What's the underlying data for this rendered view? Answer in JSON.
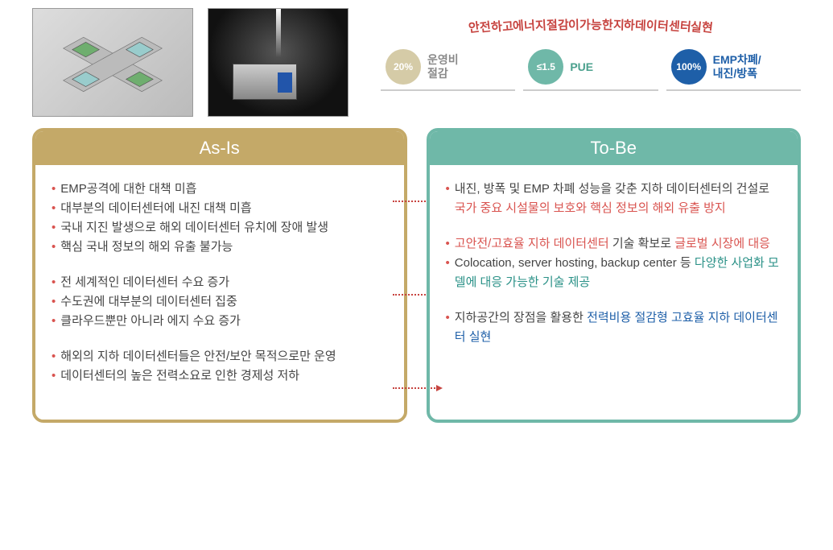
{
  "kpi": {
    "arc_text": "안전하고 에너지 절감이 가능한 지하 데이터센터 실현",
    "arc_color": "#c74440",
    "items": [
      {
        "circle_text": "20%",
        "circle_bg": "#d5cba7",
        "label": "운영비\n절감",
        "label_color": "#8a8a8a",
        "underline_color": "#cccccc"
      },
      {
        "circle_text": "≤1.5",
        "circle_bg": "#6fb8a8",
        "label": "PUE",
        "label_color": "#4aa08d",
        "underline_color": "#cccccc"
      },
      {
        "circle_text": "100%",
        "circle_bg": "#1e5fa8",
        "label": "EMP차폐/\n내진/방폭",
        "label_color": "#1e5fa8",
        "underline_color": "#cccccc"
      }
    ]
  },
  "panels": {
    "asis": {
      "title": "As-Is",
      "border_color": "#c4a968",
      "groups": [
        [
          {
            "parts": [
              {
                "t": "EMP공격에 대한 대책 미흡"
              }
            ]
          },
          {
            "parts": [
              {
                "t": "대부분의 데이터센터에 내진 대책 미흡"
              }
            ]
          },
          {
            "parts": [
              {
                "t": "국내 지진 발생으로 해외 데이터센터 유치에 장애 발생"
              }
            ]
          },
          {
            "parts": [
              {
                "t": "핵심 국내 정보의 해외 유출 불가능"
              }
            ]
          }
        ],
        [
          {
            "parts": [
              {
                "t": "전 세계적인 데이터센터 수요 증가"
              }
            ]
          },
          {
            "parts": [
              {
                "t": "수도권에 대부분의 데이터센터 집중"
              }
            ]
          },
          {
            "parts": [
              {
                "t": "클라우드뿐만 아니라 에지 수요 증가"
              }
            ]
          }
        ],
        [
          {
            "parts": [
              {
                "t": "해외의 지하 데이터센터들은 안전/보안 목적으로만 운영"
              }
            ]
          },
          {
            "parts": [
              {
                "t": "데이터센터의 높은 전력소요로 인한 경제성 저하"
              }
            ]
          }
        ]
      ]
    },
    "tobe": {
      "title": "To-Be",
      "border_color": "#6fb8a8",
      "groups": [
        [
          {
            "parts": [
              {
                "t": "내진, 방폭 및 EMP 차폐 성능을 갖춘 지하 데이터센터의 건설로 "
              },
              {
                "t": "국가 중요 시설물의 보호와 핵심 정보의 해외 유출 방지",
                "c": "hl-red"
              }
            ]
          }
        ],
        [
          {
            "parts": [
              {
                "t": "고안전/고효율 지하 데이터센터",
                "c": "hl-red"
              },
              {
                "t": " 기술 확보로 "
              },
              {
                "t": "글로벌 시장에 대응",
                "c": "hl-red"
              }
            ]
          },
          {
            "parts": [
              {
                "t": "Colocation, server hosting, backup center 등 "
              },
              {
                "t": "다양한 사업화 모델에 대응 가능한 기술 제공",
                "c": "hl-teal"
              }
            ]
          }
        ],
        [
          {
            "parts": [
              {
                "t": "지하공간의 장점을 활용한 "
              },
              {
                "t": "전력비용 절감형 고효율 지하 데이터센터 실현",
                "c": "hl-blue"
              }
            ]
          }
        ]
      ]
    }
  },
  "arrows": {
    "color": "#c74440",
    "positions_pct": [
      26,
      55,
      84
    ]
  },
  "images": {
    "img1_alt": "isometric-datacenter-render",
    "img2_alt": "underground-tunnel-datacenter"
  },
  "style": {
    "bullet_color": "#d9534f",
    "body_text_color": "#444444",
    "background": "#ffffff",
    "font_size_body": 15,
    "font_size_header": 22,
    "font_size_kpi_label": 14
  }
}
